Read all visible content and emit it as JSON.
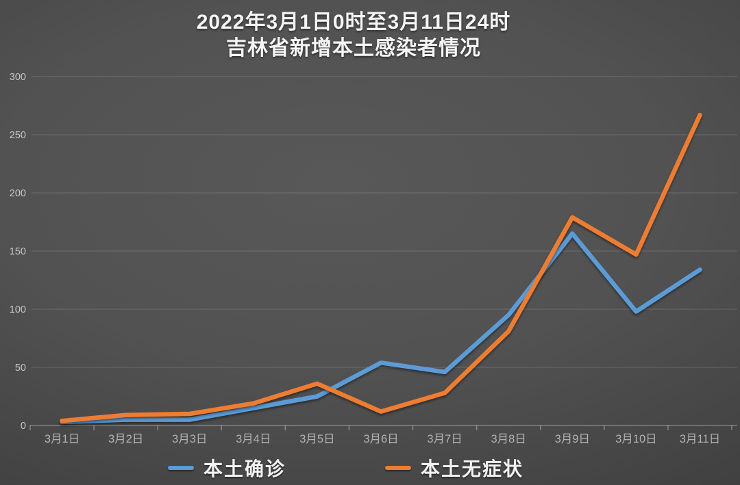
{
  "title": {
    "line1": "2022年3月1日0时至3月11日24时",
    "line2": "吉林省新增本土感染者情况"
  },
  "chart_data": {
    "type": "line",
    "title": "2022年3月1日0时至3月11日24时 吉林省新增本土感染者情况",
    "categories": [
      "3月1日",
      "3月2日",
      "3月3日",
      "3月4日",
      "3月5日",
      "3月6日",
      "3月7日",
      "3月8日",
      "3月9日",
      "3月10日",
      "3月11日"
    ],
    "series": [
      {
        "name": "本土确诊",
        "color": "#5B9BD5",
        "values": [
          3,
          5,
          5,
          15,
          25,
          54,
          46,
          95,
          165,
          98,
          134
        ]
      },
      {
        "name": "本土无症状",
        "color": "#ED7D31",
        "values": [
          4,
          9,
          10,
          19,
          36,
          12,
          28,
          81,
          179,
          147,
          267
        ]
      }
    ],
    "xlabel": "",
    "ylabel": "",
    "ylim": [
      0,
      300
    ],
    "yticks": [
      0,
      50,
      100,
      150,
      200,
      250,
      300
    ],
    "grid": true,
    "legend_position": "bottom"
  },
  "colors": {
    "background_center": "#585858",
    "background_edge": "#262626",
    "gridline": "rgba(255,255,255,0.16)",
    "axis_line": "rgba(255,255,255,0.32)",
    "tick_mark": "rgba(255,255,255,0.35)",
    "y_tick_label": "#c8c8c8",
    "x_tick_label": "#b3b3b3",
    "title_text": "#f5f5f5",
    "legend_text": "#f2f2f2"
  }
}
